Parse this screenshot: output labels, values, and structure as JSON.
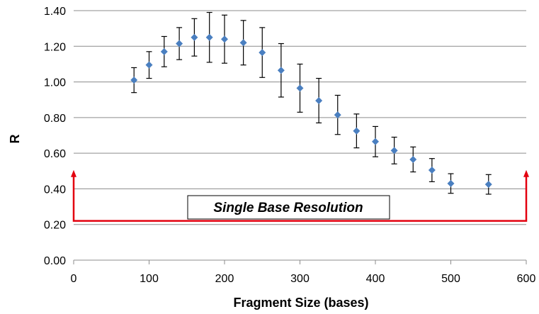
{
  "chart_data": {
    "type": "scatter",
    "xlabel": "Fragment Size (bases)",
    "ylabel": "R",
    "xlim": [
      0,
      600
    ],
    "ylim": [
      0,
      1.4
    ],
    "x_ticks": [
      "0",
      "100",
      "200",
      "300",
      "400",
      "500",
      "600"
    ],
    "y_ticks": [
      "0.00",
      "0.20",
      "0.40",
      "0.60",
      "0.80",
      "1.00",
      "1.20",
      "1.40"
    ],
    "grid": "horizontal",
    "legend": "none",
    "error_bars": true,
    "series": [
      {
        "color": "#4a7fc0",
        "marker": "diamond",
        "points": [
          {
            "x": 80,
            "y": 1.01,
            "err": 0.07
          },
          {
            "x": 100,
            "y": 1.095,
            "err": 0.075
          },
          {
            "x": 120,
            "y": 1.17,
            "err": 0.085
          },
          {
            "x": 140,
            "y": 1.215,
            "err": 0.09
          },
          {
            "x": 160,
            "y": 1.25,
            "err": 0.105
          },
          {
            "x": 180,
            "y": 1.25,
            "err": 0.14
          },
          {
            "x": 200,
            "y": 1.24,
            "err": 0.135
          },
          {
            "x": 225,
            "y": 1.22,
            "err": 0.125
          },
          {
            "x": 250,
            "y": 1.165,
            "err": 0.14
          },
          {
            "x": 275,
            "y": 1.065,
            "err": 0.15
          },
          {
            "x": 300,
            "y": 0.965,
            "err": 0.135
          },
          {
            "x": 325,
            "y": 0.895,
            "err": 0.125
          },
          {
            "x": 350,
            "y": 0.815,
            "err": 0.11
          },
          {
            "x": 375,
            "y": 0.725,
            "err": 0.095
          },
          {
            "x": 400,
            "y": 0.665,
            "err": 0.085
          },
          {
            "x": 425,
            "y": 0.615,
            "err": 0.075
          },
          {
            "x": 450,
            "y": 0.565,
            "err": 0.07
          },
          {
            "x": 475,
            "y": 0.505,
            "err": 0.065
          },
          {
            "x": 500,
            "y": 0.43,
            "err": 0.055
          },
          {
            "x": 550,
            "y": 0.425,
            "err": 0.055
          }
        ]
      }
    ],
    "annotation": {
      "text": "Single Base Resolution",
      "color": "#e3000f",
      "bracket_x": [
        0,
        600
      ],
      "bracket_top_y": 0.49,
      "bracket_bottom_y": 0.22
    }
  }
}
